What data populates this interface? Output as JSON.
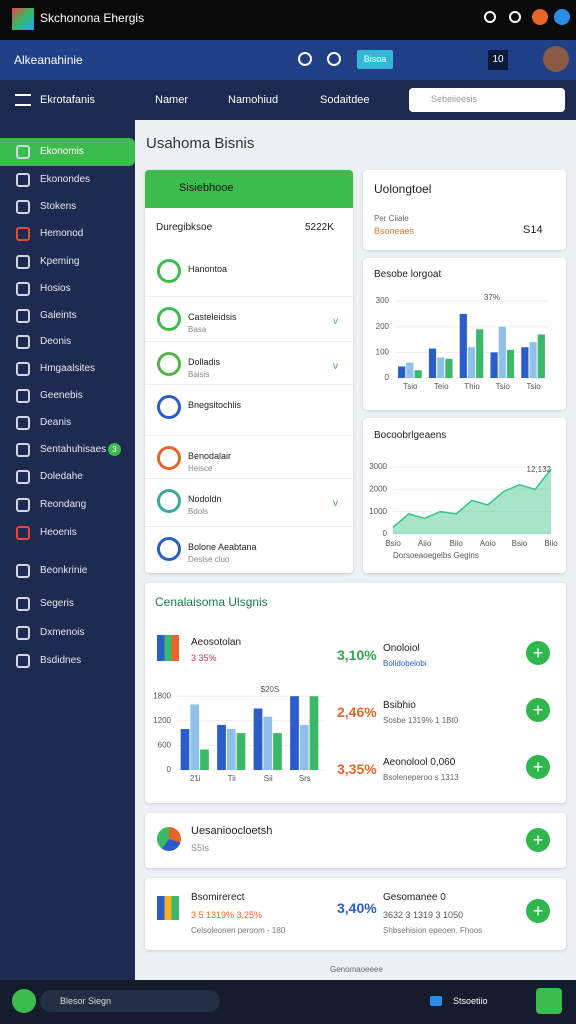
{
  "topbar": {
    "app_name": "Skchonona Ehergis"
  },
  "header": {
    "title": "Alkeanahinie",
    "button": "Bisoa",
    "count": "10"
  },
  "navbar": {
    "section": "Ekrotafanis",
    "links": [
      "Namer",
      "Namohiud",
      "Sodaitdee"
    ],
    "search_placeholder": "Sebeiieesis"
  },
  "sidebar": {
    "items": [
      "Ekonomis",
      "Ekonondes",
      "Stokens",
      "Hemonod",
      "Kpeming",
      "Hosios",
      "Galeints",
      "Deonis",
      "Hmgaalsites",
      "Geenebis",
      "Deanis",
      "Sentahuhisaes",
      "Doledahe",
      "Reondang",
      "Heoenis",
      "Beonkrinie",
      "Segeris",
      "Dxmenois",
      "Bsdidnes"
    ],
    "badge": "3"
  },
  "main": {
    "title": "Usahoma Bisnis",
    "list_card": {
      "header": "Sisiebhooe",
      "summary_label": "Duregibksoe",
      "summary_value": "5222K",
      "items": [
        {
          "title": "Hanontoa",
          "sub": null
        },
        {
          "title": "Casteleidsis",
          "sub": "Basa"
        },
        {
          "title": "Dolladis",
          "sub": "Baisis"
        },
        {
          "title": "Bnegsitochlis",
          "sub": null
        },
        {
          "title": "Benodalair",
          "sub": "Heisce"
        },
        {
          "title": "Nodoldn",
          "sub": "Bdols"
        },
        {
          "title": "Bolone Aeabtana",
          "sub": "Deslse cluo"
        }
      ]
    },
    "stat_card": {
      "title": "Uolongtoel",
      "label": "Per Ciiale",
      "sub": "Bsoneaes",
      "value": "S14"
    },
    "bar_chart": {
      "type": "bar",
      "title": "Besobe lorgoat",
      "annotation": "37%",
      "categories": [
        "Tsio",
        "Teio",
        "Thio",
        "Tsio",
        "Tsio"
      ],
      "ylim": [
        0,
        320
      ],
      "yticks": [
        0,
        100,
        200,
        300
      ],
      "series": [
        {
          "color": "#2a5dc8",
          "values": [
            45,
            115,
            250,
            100,
            120
          ]
        },
        {
          "color": "#8fc0ea",
          "values": [
            60,
            80,
            120,
            200,
            140
          ]
        },
        {
          "color": "#3cb86a",
          "values": [
            30,
            75,
            190,
            110,
            170
          ]
        }
      ]
    },
    "area_chart": {
      "type": "area",
      "title": "Bocoobrlgeaens",
      "annotation": "12,132",
      "legend": "Dorsoeaoegelbs Gegins",
      "color": "#3cc38a",
      "ylim": [
        0,
        3400
      ],
      "yticks": [
        0,
        1000,
        2000,
        3000
      ],
      "categories": [
        "Bsio",
        null,
        "Aiio",
        null,
        "Biio",
        null,
        "Aoio",
        null,
        "Bsio",
        null,
        "Biio"
      ],
      "values": [
        300,
        900,
        700,
        1000,
        900,
        1500,
        1300,
        1900,
        2200,
        2000,
        2900
      ]
    },
    "section2": {
      "title": "Cenalaisoma Ulsgnis",
      "head_label": "Aeosotolan",
      "head_sub": "3 35%",
      "chart": {
        "type": "bar",
        "annotation": "$20S",
        "categories": [
          "21i",
          "Tii",
          "Sii",
          "Srs"
        ],
        "ylim": [
          0,
          2000
        ],
        "yticks": [
          0,
          600,
          1200,
          1800
        ],
        "series": [
          {
            "color": "#2a5dc8",
            "values": [
              1000,
              1100,
              1500,
              1800
            ]
          },
          {
            "color": "#8fc0ea",
            "values": [
              1600,
              1000,
              1300,
              1100
            ]
          },
          {
            "color": "#3cb86a",
            "values": [
              500,
              900,
              900,
              1800
            ]
          }
        ]
      },
      "items": [
        {
          "value": "3,10%",
          "label": "Onoloiol",
          "sub": "Bolidobelobi"
        },
        {
          "value": "2,46%",
          "label": "Bsibhio",
          "sub": "Sosbe 1319% 1 1Bt0"
        },
        {
          "value": "3,35%",
          "label": "Aeonolool 0,060",
          "sub": "Bsoleneperoo s 1313"
        }
      ]
    },
    "card3": {
      "title": "Uesanioocloetsh",
      "sub": "S5Is"
    },
    "card4": {
      "title": "Bsomirerect",
      "sub": "3 5 1319% 3,25%",
      "foot": "Celsoleonen peroom - 180",
      "value": "3,40%",
      "label": "Gesomanee 0",
      "sub2": "3632 3 1319 3 1050",
      "foot2": "Shbsehision epeoen. Fhoos"
    }
  },
  "footer": {
    "text": "Genomaoeeee"
  },
  "bottombar": {
    "search": "Blesor Siegn",
    "link": "Stsoetiio"
  }
}
